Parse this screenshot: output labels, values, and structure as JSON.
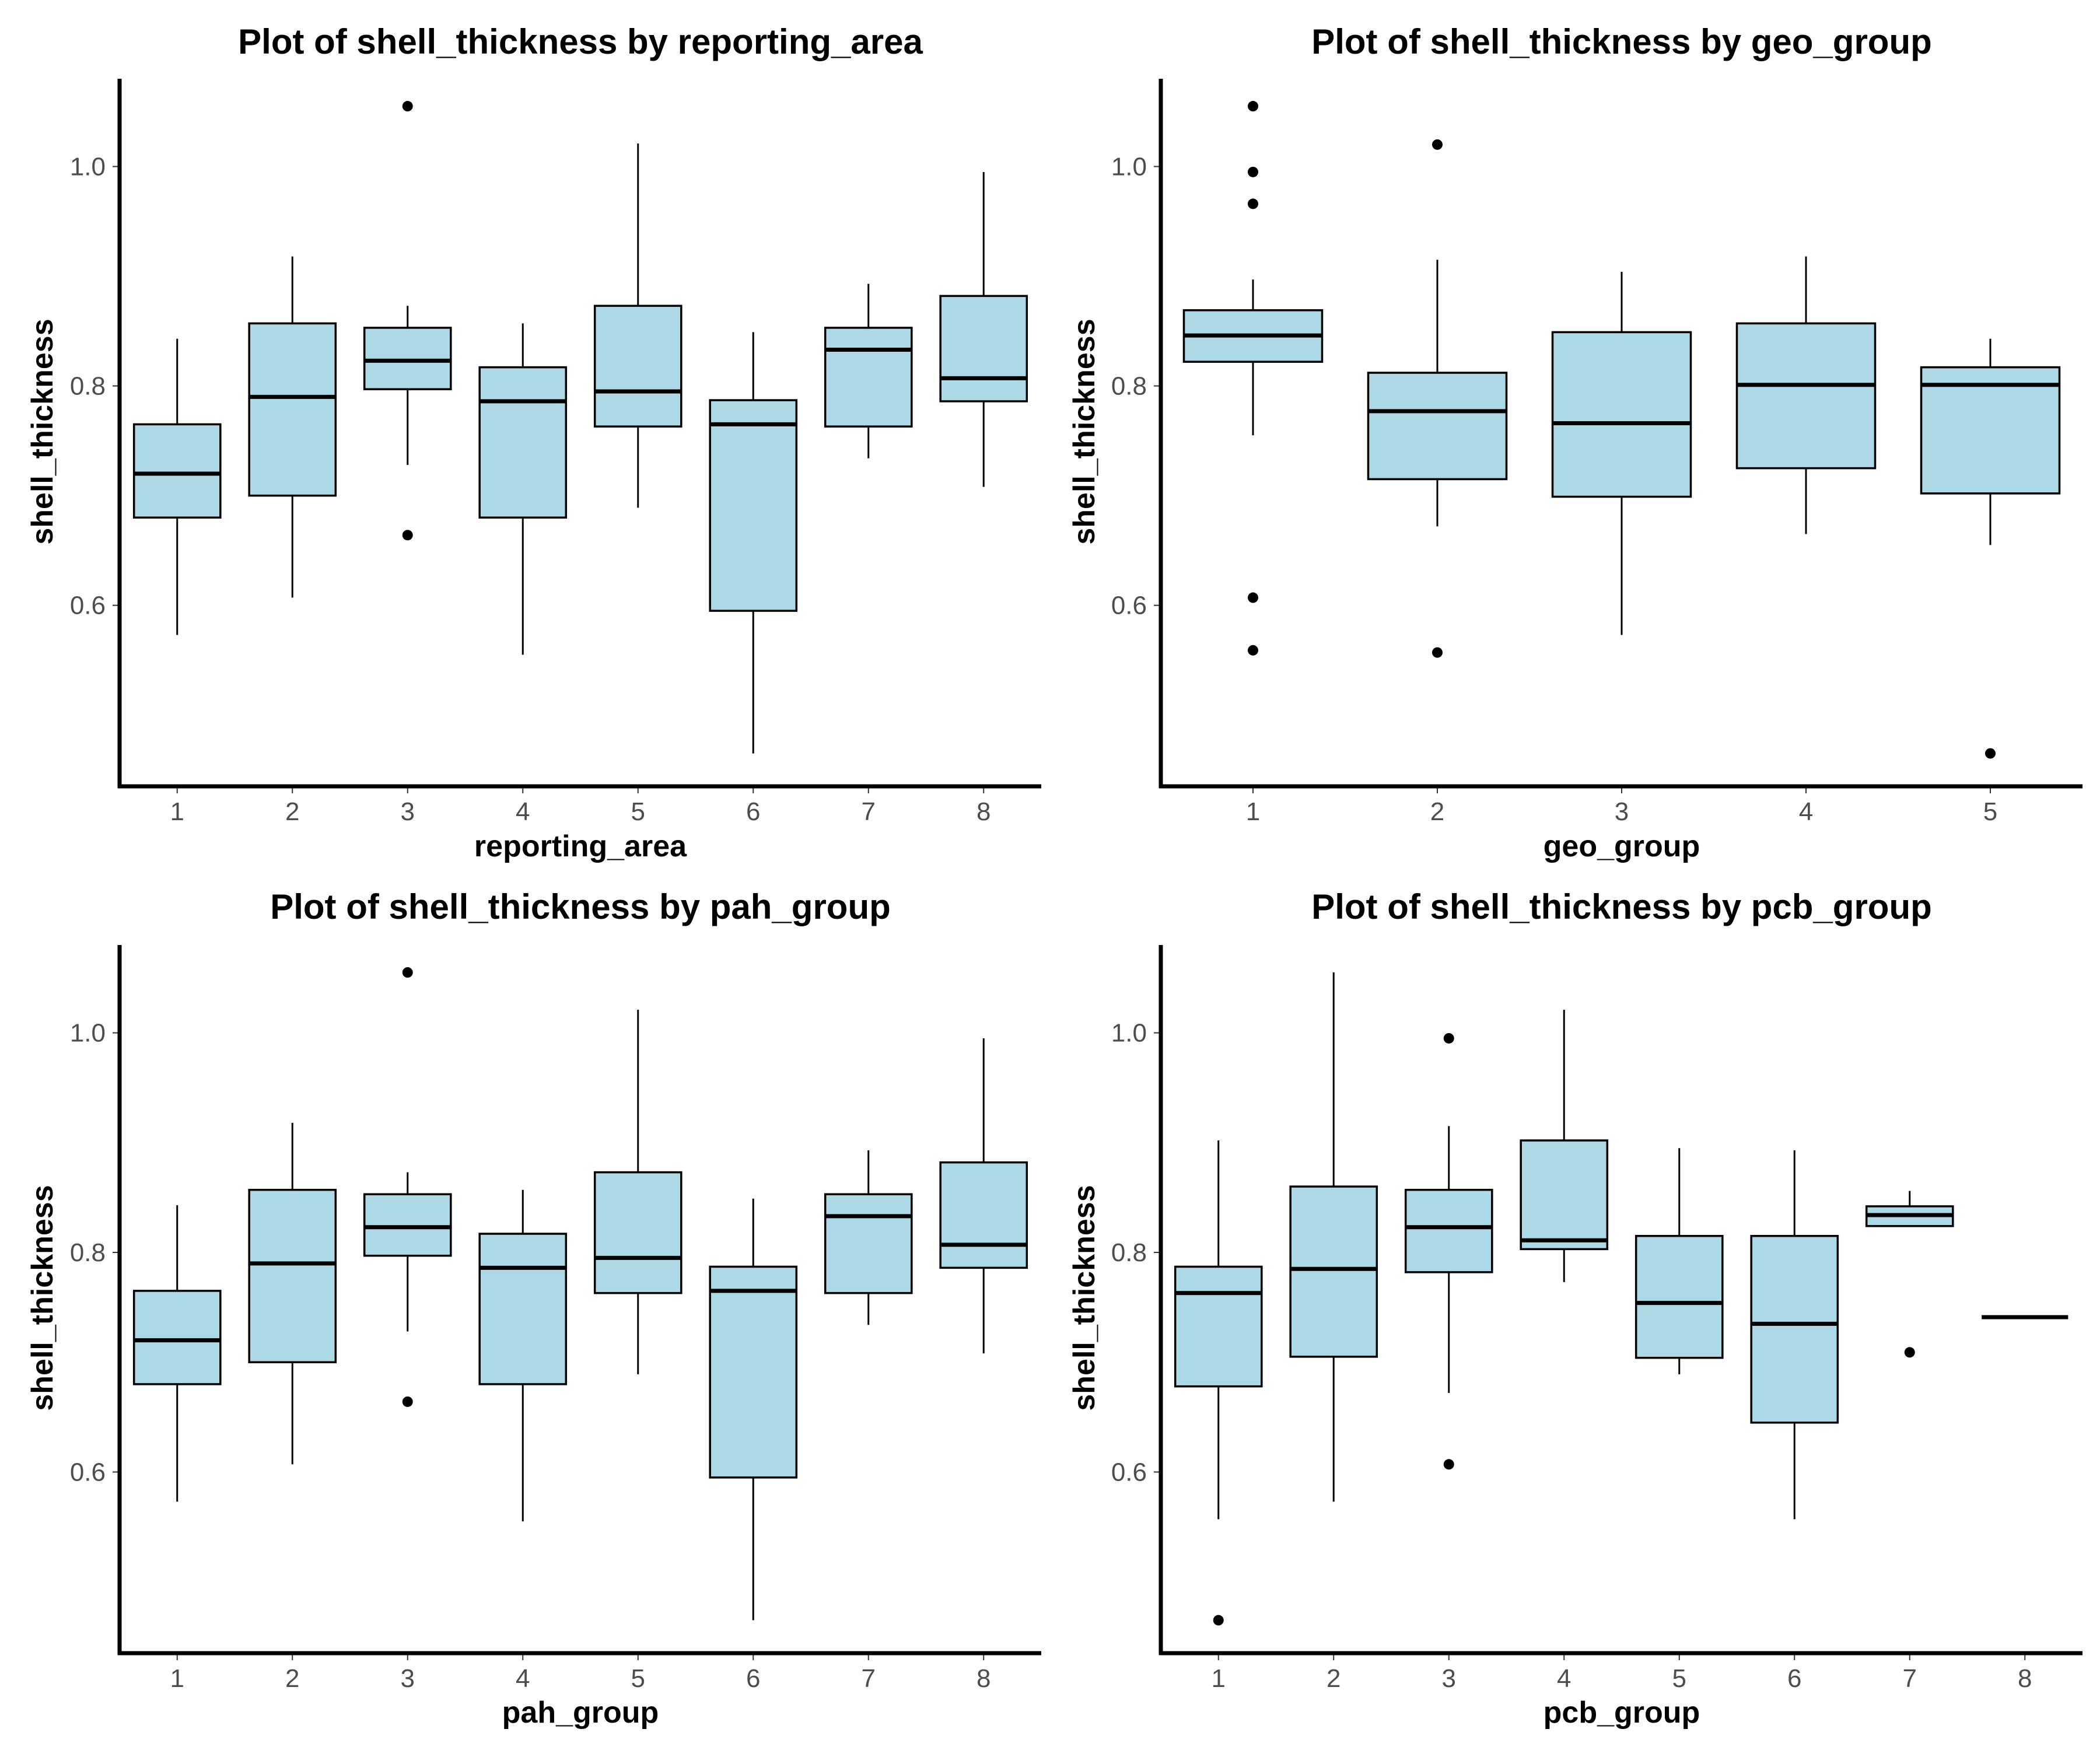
{
  "chart_data": [
    {
      "type": "boxplot",
      "title": "Plot of shell_thickness by reporting_area",
      "xlabel": "reporting_area",
      "ylabel": "shell_thickness",
      "ylim": [
        0.435,
        1.08
      ],
      "yticks": [
        "0.6",
        "0.8",
        "1.0"
      ],
      "box_fill": "#add8e6",
      "categories": [
        "1",
        "2",
        "3",
        "4",
        "5",
        "6",
        "7",
        "8"
      ],
      "boxes": [
        {
          "q1": 0.68,
          "median": 0.72,
          "q3": 0.765,
          "lower": 0.573,
          "upper": 0.843,
          "outliers": []
        },
        {
          "q1": 0.7,
          "median": 0.79,
          "q3": 0.857,
          "lower": 0.607,
          "upper": 0.918,
          "outliers": []
        },
        {
          "q1": 0.797,
          "median": 0.823,
          "q3": 0.853,
          "lower": 0.728,
          "upper": 0.873,
          "outliers": [
            1.055,
            0.664
          ]
        },
        {
          "q1": 0.68,
          "median": 0.786,
          "q3": 0.817,
          "lower": 0.555,
          "upper": 0.857,
          "outliers": []
        },
        {
          "q1": 0.763,
          "median": 0.795,
          "q3": 0.873,
          "lower": 0.689,
          "upper": 1.021,
          "outliers": []
        },
        {
          "q1": 0.595,
          "median": 0.765,
          "q3": 0.787,
          "lower": 0.465,
          "upper": 0.849,
          "outliers": []
        },
        {
          "q1": 0.763,
          "median": 0.833,
          "q3": 0.853,
          "lower": 0.734,
          "upper": 0.893,
          "outliers": []
        },
        {
          "q1": 0.786,
          "median": 0.807,
          "q3": 0.882,
          "lower": 0.708,
          "upper": 0.995,
          "outliers": []
        }
      ]
    },
    {
      "type": "boxplot",
      "title": "Plot of shell_thickness by geo_group",
      "xlabel": "geo_group",
      "ylabel": "shell_thickness",
      "ylim": [
        0.435,
        1.08
      ],
      "yticks": [
        "0.6",
        "0.8",
        "1.0"
      ],
      "box_fill": "#add8e6",
      "categories": [
        "1",
        "2",
        "3",
        "4",
        "5"
      ],
      "boxes": [
        {
          "q1": 0.822,
          "median": 0.846,
          "q3": 0.869,
          "lower": 0.755,
          "upper": 0.897,
          "outliers": [
            1.055,
            0.995,
            0.966,
            0.607,
            0.559
          ]
        },
        {
          "q1": 0.715,
          "median": 0.777,
          "q3": 0.812,
          "lower": 0.672,
          "upper": 0.915,
          "outliers": [
            1.02,
            0.557
          ]
        },
        {
          "q1": 0.699,
          "median": 0.766,
          "q3": 0.849,
          "lower": 0.573,
          "upper": 0.904,
          "outliers": []
        },
        {
          "q1": 0.725,
          "median": 0.801,
          "q3": 0.857,
          "lower": 0.665,
          "upper": 0.918,
          "outliers": []
        },
        {
          "q1": 0.702,
          "median": 0.801,
          "q3": 0.817,
          "lower": 0.655,
          "upper": 0.843,
          "outliers": [
            0.465
          ]
        }
      ]
    },
    {
      "type": "boxplot",
      "title": "Plot of shell_thickness by pah_group",
      "xlabel": "pah_group",
      "ylabel": "shell_thickness",
      "ylim": [
        0.435,
        1.08
      ],
      "yticks": [
        "0.6",
        "0.8",
        "1.0"
      ],
      "box_fill": "#add8e6",
      "categories": [
        "1",
        "2",
        "3",
        "4",
        "5",
        "6",
        "7",
        "8"
      ],
      "boxes": [
        {
          "q1": 0.68,
          "median": 0.72,
          "q3": 0.765,
          "lower": 0.573,
          "upper": 0.843,
          "outliers": []
        },
        {
          "q1": 0.7,
          "median": 0.79,
          "q3": 0.857,
          "lower": 0.607,
          "upper": 0.918,
          "outliers": []
        },
        {
          "q1": 0.797,
          "median": 0.823,
          "q3": 0.853,
          "lower": 0.728,
          "upper": 0.873,
          "outliers": [
            1.055,
            0.664
          ]
        },
        {
          "q1": 0.68,
          "median": 0.786,
          "q3": 0.817,
          "lower": 0.555,
          "upper": 0.857,
          "outliers": []
        },
        {
          "q1": 0.763,
          "median": 0.795,
          "q3": 0.873,
          "lower": 0.689,
          "upper": 1.021,
          "outliers": []
        },
        {
          "q1": 0.595,
          "median": 0.765,
          "q3": 0.787,
          "lower": 0.465,
          "upper": 0.849,
          "outliers": []
        },
        {
          "q1": 0.763,
          "median": 0.833,
          "q3": 0.853,
          "lower": 0.734,
          "upper": 0.893,
          "outliers": []
        },
        {
          "q1": 0.786,
          "median": 0.807,
          "q3": 0.882,
          "lower": 0.708,
          "upper": 0.995,
          "outliers": []
        }
      ]
    },
    {
      "type": "boxplot",
      "title": "Plot of shell_thickness by pcb_group",
      "xlabel": "pcb_group",
      "ylabel": "shell_thickness",
      "ylim": [
        0.435,
        1.08
      ],
      "yticks": [
        "0.6",
        "0.8",
        "1.0"
      ],
      "box_fill": "#add8e6",
      "categories": [
        "1",
        "2",
        "3",
        "4",
        "5",
        "6",
        "7",
        "8"
      ],
      "boxes": [
        {
          "q1": 0.678,
          "median": 0.763,
          "q3": 0.787,
          "lower": 0.557,
          "upper": 0.902,
          "outliers": [
            0.465
          ]
        },
        {
          "q1": 0.705,
          "median": 0.785,
          "q3": 0.86,
          "lower": 0.573,
          "upper": 1.055,
          "outliers": []
        },
        {
          "q1": 0.782,
          "median": 0.823,
          "q3": 0.857,
          "lower": 0.672,
          "upper": 0.915,
          "outliers": [
            0.995,
            0.607
          ]
        },
        {
          "q1": 0.803,
          "median": 0.811,
          "q3": 0.902,
          "lower": 0.773,
          "upper": 1.021,
          "outliers": []
        },
        {
          "q1": 0.704,
          "median": 0.754,
          "q3": 0.815,
          "lower": 0.689,
          "upper": 0.895,
          "outliers": []
        },
        {
          "q1": 0.645,
          "median": 0.735,
          "q3": 0.815,
          "lower": 0.557,
          "upper": 0.893,
          "outliers": []
        },
        {
          "q1": 0.824,
          "median": 0.834,
          "q3": 0.842,
          "lower": 0.824,
          "upper": 0.856,
          "outliers": [
            0.709
          ]
        },
        {
          "q1": 0.741,
          "median": 0.741,
          "q3": 0.741,
          "lower": 0.741,
          "upper": 0.741,
          "outliers": []
        }
      ]
    }
  ]
}
